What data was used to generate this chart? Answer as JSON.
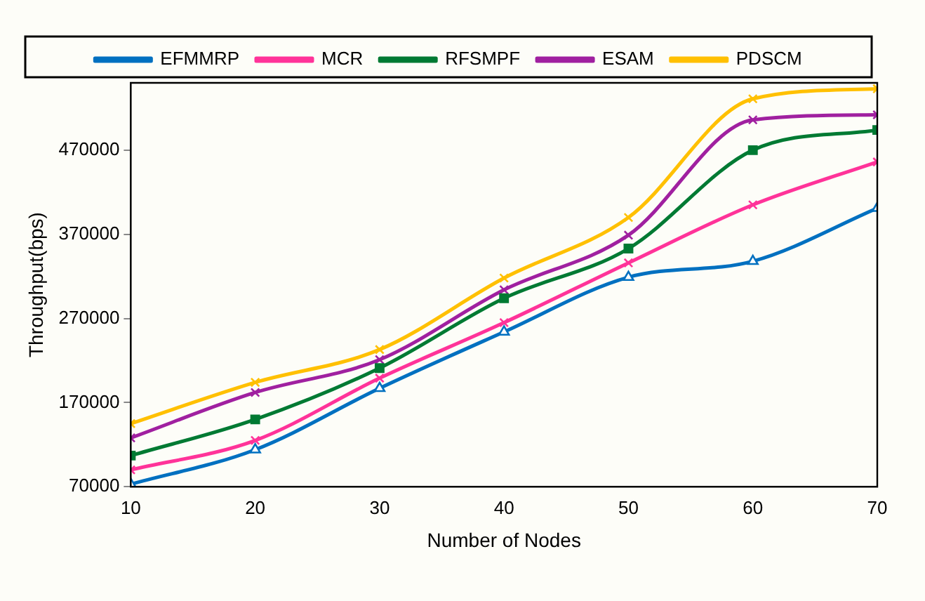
{
  "chart_data": {
    "type": "line",
    "xlabel": "Number of Nodes",
    "ylabel": "Throughput(bps)",
    "x": [
      10,
      20,
      30,
      40,
      50,
      60,
      70
    ],
    "series": [
      {
        "name": "EFMMRP",
        "color": "#0070c0",
        "marker": "triangle",
        "values": [
          73000,
          114000,
          187000,
          254000,
          319000,
          338000,
          401000
        ]
      },
      {
        "name": "MCR",
        "color": "#ff3399",
        "marker": "cross",
        "values": [
          90000,
          125000,
          199000,
          265000,
          336000,
          405000,
          456000
        ]
      },
      {
        "name": "RFSMPF",
        "color": "#007a33",
        "marker": "square",
        "values": [
          107000,
          150000,
          211000,
          294000,
          353000,
          470000,
          494000
        ]
      },
      {
        "name": "ESAM",
        "color": "#a020a0",
        "marker": "cross",
        "values": [
          128000,
          182000,
          221000,
          304000,
          369000,
          506000,
          512000
        ]
      },
      {
        "name": "PDSCM",
        "color": "#ffc000",
        "marker": "cross",
        "values": [
          145000,
          194000,
          233000,
          318000,
          390000,
          531000,
          543000
        ]
      }
    ],
    "xlim": [
      10,
      70
    ],
    "xticks": [
      10,
      20,
      30,
      40,
      50,
      60,
      70
    ],
    "ylim": [
      70000,
      550000
    ],
    "yticks": [
      70000,
      170000,
      270000,
      370000,
      470000
    ],
    "grid": false,
    "legend": "top"
  }
}
